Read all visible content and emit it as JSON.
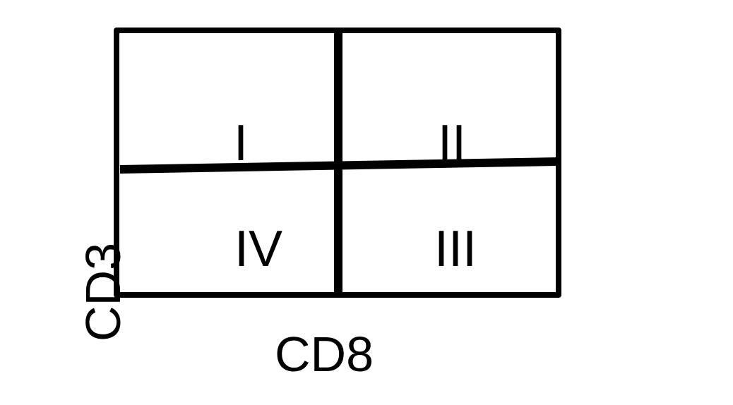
{
  "diagram": {
    "quadrants": {
      "top_left": "I",
      "top_right": "II",
      "bottom_right": "III",
      "bottom_left": "IV"
    },
    "x_axis_label": "CD8",
    "y_axis_label": "CD3",
    "line_color": "#000000",
    "background": "#ffffff"
  }
}
